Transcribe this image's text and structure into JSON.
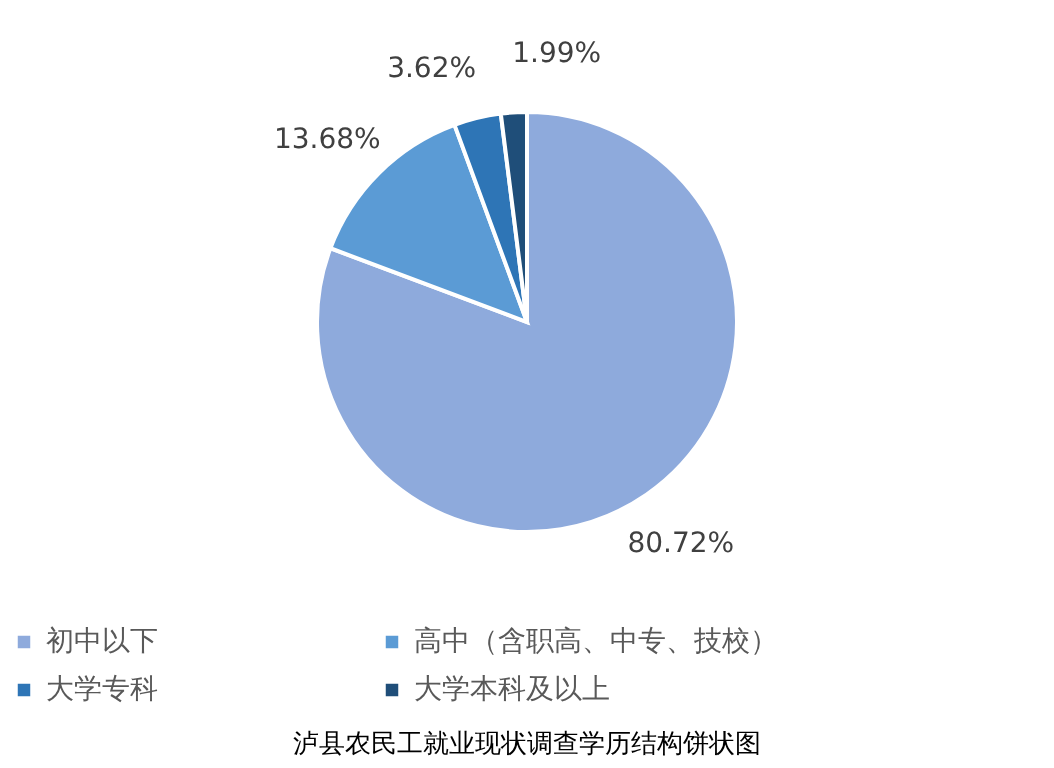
{
  "chart_data": {
    "type": "pie",
    "title": "泸县农民工就业现状调查学历结构饼状图",
    "categories": [
      "初中以下",
      "高中（含职高、中专、技校）",
      "大学专科",
      "大学本科及以上"
    ],
    "values": [
      80.72,
      13.68,
      3.62,
      1.99
    ],
    "value_labels": [
      "80.72%",
      "13.68%",
      "3.62%",
      "1.99%"
    ],
    "colors": [
      "#8eaadc",
      "#5b9bd5",
      "#2e75b6",
      "#1f4e79"
    ],
    "legend": "bottom"
  }
}
